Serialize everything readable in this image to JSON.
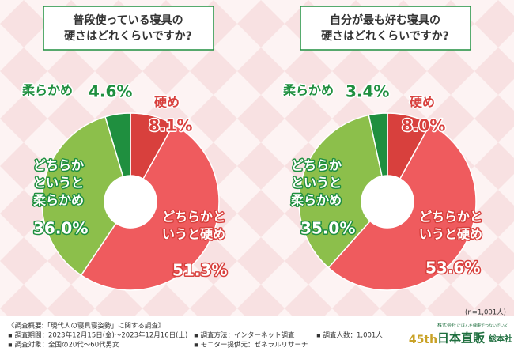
{
  "chart_data": [
    {
      "type": "donut",
      "title": [
        "普段使っている寝具の",
        "硬さはどれくらいですか?"
      ],
      "categories": [
        [
          "硬め"
        ],
        [
          "どちらかと",
          "いうと硬め"
        ],
        [
          "どちらか",
          "というと",
          "柔らかめ"
        ],
        [
          "柔らかめ"
        ]
      ],
      "values": [
        8.1,
        51.3,
        36.0,
        4.6
      ],
      "value_labels": [
        "8.1%",
        "51.3%",
        "36.0%",
        "4.6%"
      ],
      "colors": [
        "#d8403d",
        "#ef5b5e",
        "#8cbf4b",
        "#1f8f3f"
      ]
    },
    {
      "type": "donut",
      "title": [
        "自分が最も好む寝具の",
        "硬さはどれくらいですか?"
      ],
      "categories": [
        [
          "硬め"
        ],
        [
          "どちらかと",
          "いうと硬め"
        ],
        [
          "どちらか",
          "というと",
          "柔らかめ"
        ],
        [
          "柔らかめ"
        ]
      ],
      "values": [
        8.0,
        53.6,
        35.0,
        3.4
      ],
      "value_labels": [
        "8.0%",
        "53.6%",
        "35.0%",
        "3.4%"
      ],
      "colors": [
        "#d8403d",
        "#ef5b5e",
        "#8cbf4b",
        "#1f8f3f"
      ]
    }
  ],
  "sample_note": "(n=1,001人)",
  "footer": {
    "heading": "《調査概要:「現代人の寝具寝姿勢」に関する調査》",
    "items": [
      "▪ 調査期間：2023年12月15日(金)〜2023年12月16日(土)",
      "▪ 調査対象：全国の20代〜60代男女",
      "▪ 調査方法：インターネット調査",
      "▪ モニター提供元：ゼネラルリサーチ",
      "▪ 調査人数：1,001人"
    ]
  },
  "logo": {
    "badge": "45th",
    "company_prefix": "株式会社",
    "tagline": "にほんを健康でつないでいく",
    "name": "日本直販",
    "suffix": "総本社"
  }
}
